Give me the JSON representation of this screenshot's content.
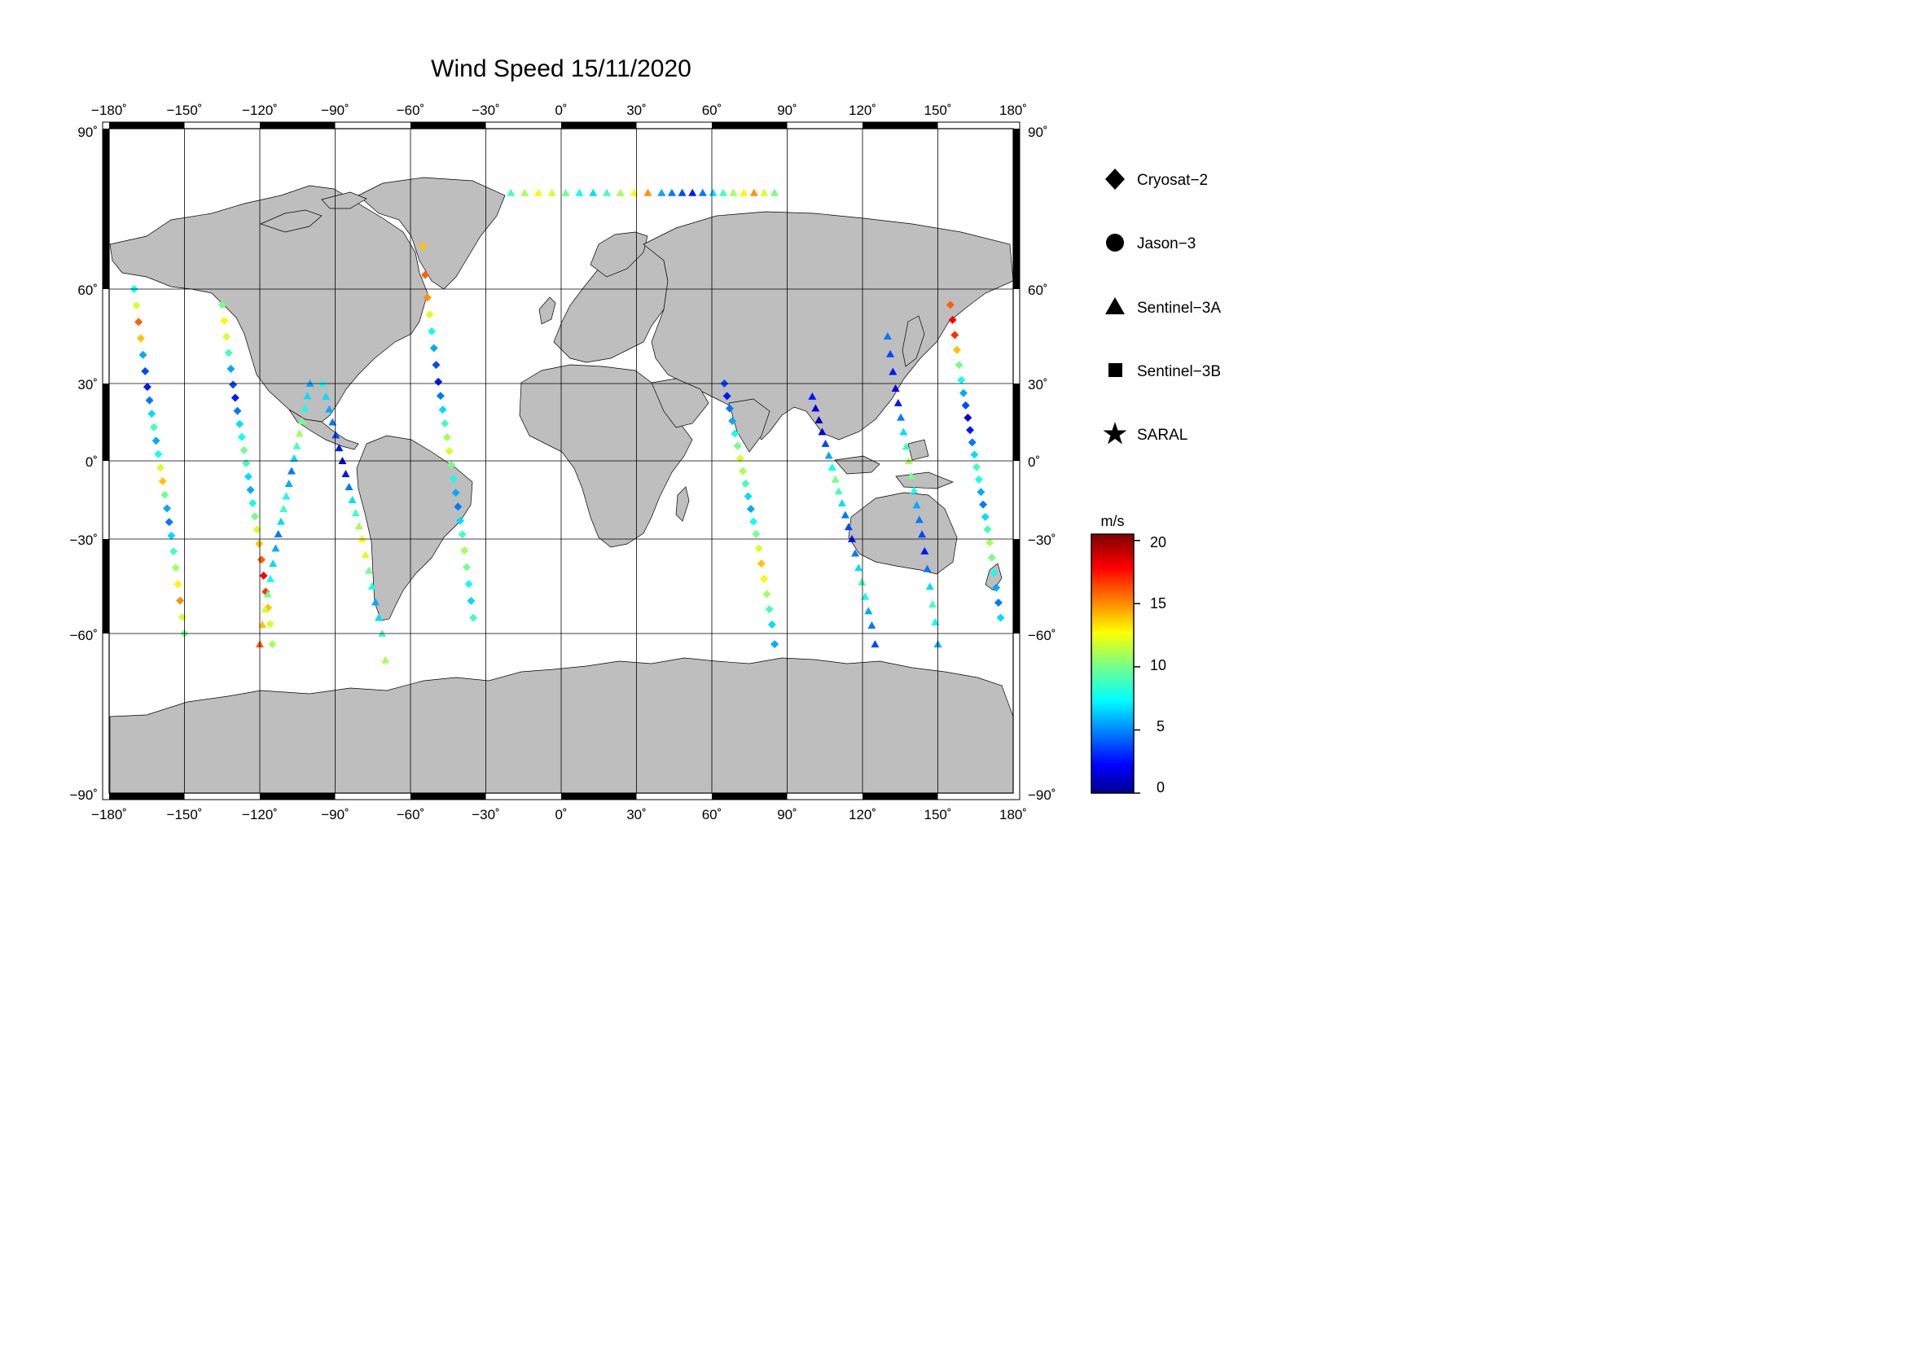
{
  "title": "Wind Speed 15/11/2020",
  "top_lon_ticks": [
    "−180˚",
    "−150˚",
    "−120˚",
    "−90˚",
    "−60˚",
    "−30˚",
    "0˚",
    "30˚",
    "60˚",
    "90˚",
    "120˚",
    "150˚",
    "180˚"
  ],
  "bottom_lon_ticks": [
    "−180˚",
    "−150˚",
    "−120˚",
    "−90˚",
    "−60˚",
    "−30˚",
    "0˚",
    "30˚",
    "60˚",
    "90˚",
    "120˚",
    "150˚",
    "180˚"
  ],
  "left_lat_ticks": [
    "90˚",
    "60˚",
    "30˚",
    "0˚",
    "−30˚",
    "−60˚",
    "−90˚"
  ],
  "right_lat_ticks": [
    "90˚",
    "60˚",
    "30˚",
    "0˚",
    "−30˚",
    "−60˚",
    "−90˚"
  ],
  "legend": [
    {
      "label": "Cryosat−2",
      "icon": "diamond"
    },
    {
      "label": "Jason−3",
      "icon": "circle"
    },
    {
      "label": "Sentinel−3A",
      "icon": "triangle"
    },
    {
      "label": "Sentinel−3B",
      "icon": "square"
    },
    {
      "label": "SARAL",
      "icon": "star"
    }
  ],
  "colorbar": {
    "unit": "m/s",
    "min": 0,
    "max": 20.5,
    "tick_labels": [
      "20",
      "15",
      "10",
      "5",
      "0"
    ],
    "tick_values": [
      20,
      15,
      10,
      5,
      0
    ]
  },
  "colors": {
    "land": "#bebebe",
    "ocean": "#ffffff",
    "grid": "#000000"
  },
  "chart_data": {
    "type": "scatter",
    "title": "Wind Speed 15/11/2020",
    "xlabel": "",
    "ylabel": "",
    "xlim": [
      -180,
      180
    ],
    "ylim": [
      -90,
      90
    ],
    "colorbar_range_ms": [
      0,
      20.5
    ],
    "series": [
      {
        "name": "Cryosat−2",
        "marker": "diamond",
        "tracks": [
          {
            "lon0": -170,
            "lon1": -150,
            "lat0": 60,
            "lat1": -60,
            "speed": [
              8,
              12,
              16,
              14,
              6,
              4,
              3,
              5,
              7,
              9,
              6,
              8,
              12,
              14,
              10,
              6,
              5,
              7,
              9,
              11,
              13,
              15,
              12,
              10
            ]
          },
          {
            "lon0": -135,
            "lon1": -115,
            "lat0": 55,
            "lat1": -62,
            "speed": [
              10,
              13,
              12,
              9,
              6,
              4,
              3,
              5,
              7,
              8,
              10,
              9,
              7,
              6,
              8,
              10,
              12,
              14,
              16,
              18,
              17,
              14,
              12,
              11
            ]
          },
          {
            "lon0": -55,
            "lon1": -35,
            "lat0": 68,
            "lat1": -55,
            "speed": [
              14,
              16,
              15,
              12,
              8,
              6,
              4,
              3,
              5,
              7,
              9,
              11,
              12,
              10,
              8,
              6,
              5,
              7,
              9,
              11,
              10,
              8,
              7,
              9
            ]
          },
          {
            "lon0": 65,
            "lon1": 85,
            "lat0": 30,
            "lat1": -62,
            "speed": [
              4,
              3,
              5,
              6,
              8,
              10,
              12,
              11,
              9,
              7,
              6,
              8,
              10,
              12,
              14,
              13,
              11,
              9,
              7,
              6
            ]
          },
          {
            "lon0": 155,
            "lon1": 175,
            "lat0": 55,
            "lat1": -55,
            "speed": [
              16,
              18,
              17,
              14,
              10,
              8,
              6,
              4,
              2,
              3,
              5,
              7,
              9,
              8,
              6,
              5,
              7,
              9,
              11,
              10,
              8,
              6,
              5,
              7
            ]
          }
        ]
      },
      {
        "name": "Sentinel−3A",
        "marker": "triangle",
        "tracks": [
          {
            "lon0": -20,
            "lon1": 40,
            "lat0": 78,
            "lat1": 78,
            "speed": [
              9,
              11,
              13,
              12,
              10,
              8,
              7,
              9,
              11,
              13,
              15,
              14
            ]
          },
          {
            "lon0": 40,
            "lon1": 85,
            "lat0": 78,
            "lat1": 78,
            "speed": [
              6,
              5,
              4,
              3,
              5,
              7,
              9,
              11,
              13,
              15,
              12,
              10
            ]
          },
          {
            "lon0": -120,
            "lon1": -100,
            "lat0": -62,
            "lat1": 30,
            "speed": [
              16,
              14,
              12,
              10,
              8,
              7,
              6,
              5,
              7,
              9,
              8,
              6,
              5,
              7,
              9,
              11,
              10,
              8,
              7,
              6
            ]
          },
          {
            "lon0": -95,
            "lon1": -70,
            "lat0": 30,
            "lat1": -65,
            "speed": [
              8,
              7,
              6,
              5,
              4,
              3,
              2,
              3,
              5,
              7,
              9,
              11,
              13,
              12,
              10,
              8,
              6,
              7,
              9,
              11
            ]
          },
          {
            "lon0": 100,
            "lon1": 125,
            "lat0": 25,
            "lat1": -62,
            "speed": [
              3,
              2,
              1,
              2,
              4,
              6,
              8,
              10,
              9,
              7,
              5,
              4,
              3,
              5,
              7,
              9,
              8,
              6,
              5,
              4
            ]
          },
          {
            "lon0": 130,
            "lon1": 150,
            "lat0": 45,
            "lat1": -62,
            "speed": [
              5,
              4,
              3,
              2,
              3,
              5,
              7,
              9,
              11,
              10,
              8,
              6,
              5,
              4,
              3,
              5,
              7,
              9,
              8,
              6
            ]
          }
        ]
      },
      {
        "name": "Jason−3",
        "marker": "circle",
        "tracks": []
      },
      {
        "name": "Sentinel−3B",
        "marker": "square",
        "tracks": []
      },
      {
        "name": "SARAL",
        "marker": "star",
        "tracks": []
      }
    ]
  }
}
